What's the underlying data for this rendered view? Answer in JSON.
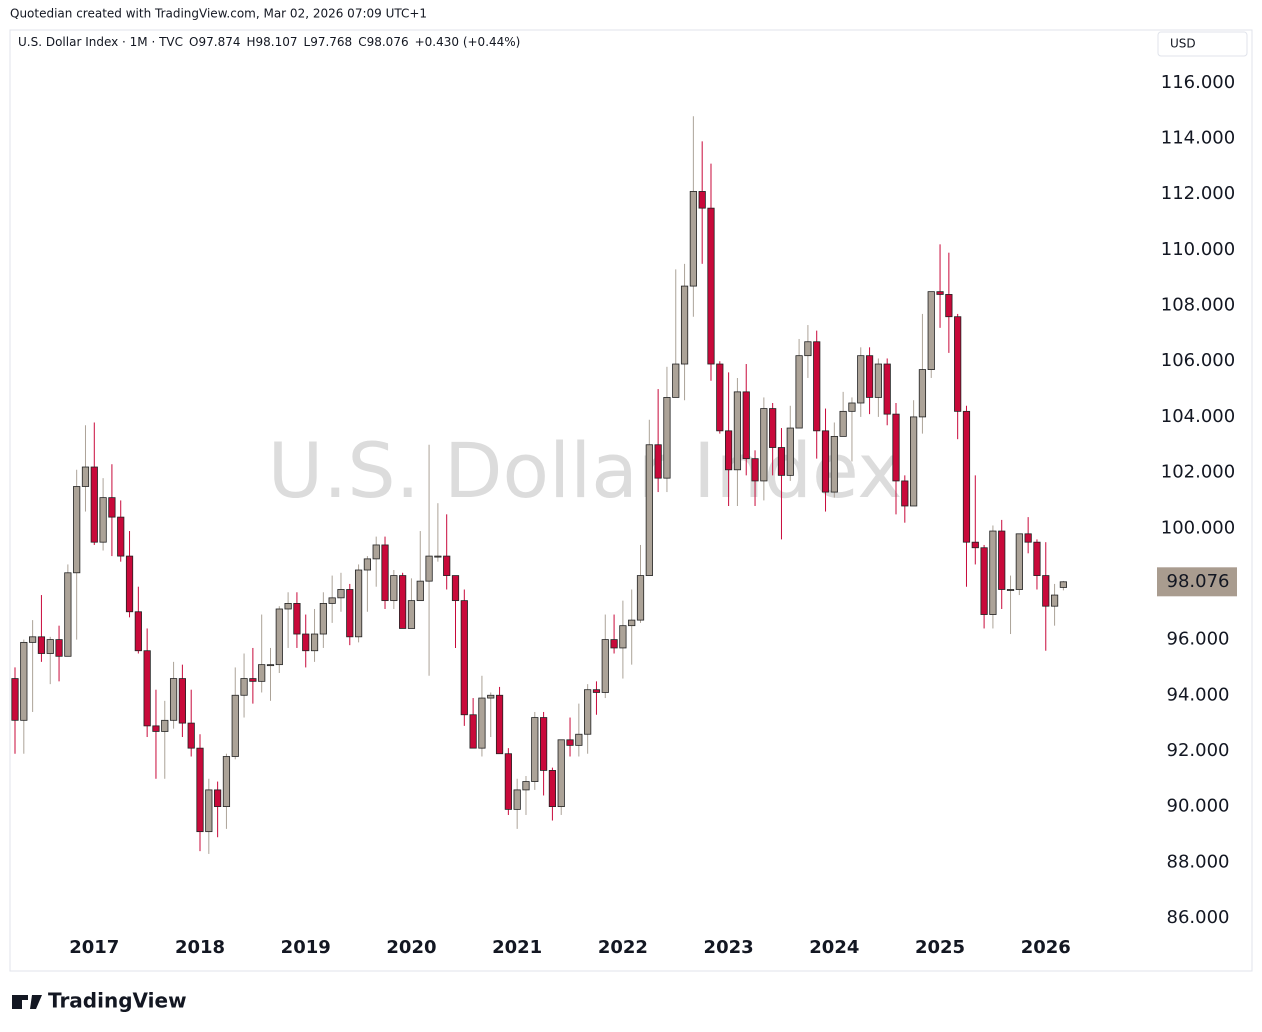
{
  "header": {
    "credit": "Quotedian created with TradingView.com, Mar 02, 2026 07:09 UTC+1"
  },
  "footer": {
    "logo": "TradingView"
  },
  "chart_data": {
    "type": "candlestick",
    "symbol": "U.S. Dollar Index · 1M · TVC",
    "ohlc_labels": [
      "O",
      "H",
      "L",
      "C"
    ],
    "change": "+0.430 (+0.44%)",
    "currency": "USD",
    "watermark": "U.S. Dollar Index",
    "up_color": "#aca398",
    "down_color": "#c8093a",
    "last_price_color": "#a99c8f",
    "categories": [
      null,
      null,
      null,
      null,
      null,
      null,
      null,
      null,
      null,
      "2017",
      null,
      null,
      null,
      null,
      null,
      null,
      null,
      null,
      null,
      null,
      null,
      "2018",
      null,
      null,
      null,
      null,
      null,
      null,
      null,
      null,
      null,
      null,
      null,
      "2019",
      null,
      null,
      null,
      null,
      null,
      null,
      null,
      null,
      null,
      null,
      null,
      "2020",
      null,
      null,
      null,
      null,
      null,
      null,
      null,
      null,
      null,
      null,
      null,
      "2021",
      null,
      null,
      null,
      null,
      null,
      null,
      null,
      null,
      null,
      null,
      null,
      "2022",
      null,
      null,
      null,
      null,
      null,
      null,
      null,
      null,
      null,
      null,
      null,
      "2023",
      null,
      null,
      null,
      null,
      null,
      null,
      null,
      null,
      null,
      null,
      null,
      "2024",
      null,
      null,
      null,
      null,
      null,
      null,
      null,
      null,
      null,
      null,
      null,
      "2025",
      null,
      null,
      null,
      null,
      null,
      null,
      null,
      null,
      null,
      null,
      null,
      "2026",
      null,
      null
    ],
    "open": [
      94.6,
      93.1,
      95.9,
      96.1,
      95.5,
      96.0,
      95.4,
      98.4,
      101.5,
      102.2,
      99.5,
      101.1,
      100.4,
      99.0,
      97.0,
      95.6,
      92.9,
      92.7,
      93.1,
      94.6,
      93.0,
      92.1,
      89.1,
      90.6,
      90.0,
      91.8,
      94.0,
      94.6,
      94.5,
      95.1,
      95.1,
      97.1,
      97.3,
      96.2,
      95.6,
      96.2,
      97.3,
      97.5,
      97.8,
      96.1,
      98.5,
      98.9,
      99.4,
      97.4,
      98.3,
      96.4,
      97.4,
      98.1,
      99.0,
      99.0,
      98.3,
      97.4,
      93.3,
      92.1,
      93.9,
      94.0,
      91.9,
      89.9,
      90.6,
      90.9,
      93.2,
      91.3,
      90.0,
      92.4,
      92.2,
      92.6,
      94.2,
      94.1,
      96.0,
      95.7,
      96.5,
      96.7,
      98.3,
      103.0,
      101.8,
      104.7,
      105.9,
      108.7,
      112.1,
      111.5,
      105.9,
      103.5,
      102.1,
      104.9,
      102.5,
      101.7,
      104.3,
      102.9,
      101.9,
      103.6,
      106.2,
      106.7,
      103.5,
      101.3,
      103.3,
      104.2,
      104.5,
      106.2,
      104.7,
      105.9,
      104.1,
      101.7,
      100.8,
      104.0,
      105.7,
      108.5,
      108.4,
      107.6,
      104.2,
      99.5,
      99.3,
      96.9,
      99.9,
      97.8,
      97.8,
      99.8,
      99.5,
      98.3,
      97.2,
      97.874
    ],
    "high": [
      95.0,
      96.0,
      96.7,
      97.6,
      96.1,
      96.5,
      98.7,
      102.1,
      103.7,
      103.8,
      101.8,
      102.3,
      101.0,
      99.9,
      97.9,
      96.4,
      94.2,
      93.8,
      95.2,
      95.1,
      94.2,
      92.6,
      91.0,
      90.9,
      91.9,
      95.0,
      95.5,
      95.7,
      96.9,
      95.7,
      97.2,
      97.7,
      97.7,
      96.9,
      97.1,
      97.7,
      98.3,
      98.4,
      98.0,
      98.7,
      99.0,
      99.7,
      99.7,
      98.5,
      98.4,
      98.2,
      99.9,
      103.0,
      100.9,
      100.5,
      98.3,
      97.8,
      93.9,
      94.7,
      94.1,
      94.3,
      92.1,
      91.0,
      91.1,
      93.4,
      93.4,
      91.4,
      92.4,
      93.2,
      93.7,
      94.4,
      94.5,
      96.9,
      96.9,
      97.4,
      97.8,
      99.4,
      103.9,
      105.0,
      105.8,
      109.3,
      109.5,
      114.8,
      113.9,
      113.1,
      106.0,
      105.6,
      105.4,
      105.9,
      102.8,
      104.7,
      104.5,
      103.6,
      104.4,
      106.8,
      107.3,
      107.1,
      104.3,
      103.8,
      104.9,
      104.7,
      106.5,
      106.5,
      106.1,
      106.1,
      104.5,
      101.9,
      104.6,
      107.7,
      108.5,
      110.2,
      109.9,
      107.7,
      104.4,
      101.9,
      99.4,
      100.1,
      100.3,
      98.3,
      99.8,
      100.4,
      99.6,
      99.5,
      98.0,
      98.107
    ],
    "low": [
      91.9,
      91.9,
      93.4,
      95.2,
      94.4,
      94.5,
      95.4,
      96.0,
      100.6,
      99.4,
      99.2,
      99.0,
      98.8,
      96.8,
      95.5,
      92.5,
      91.0,
      91.0,
      92.8,
      92.5,
      91.8,
      88.4,
      88.3,
      88.9,
      89.2,
      91.7,
      93.2,
      93.7,
      94.1,
      93.8,
      94.8,
      95.7,
      95.7,
      95.0,
      95.2,
      95.7,
      96.6,
      97.0,
      95.8,
      95.9,
      97.0,
      97.9,
      97.1,
      97.1,
      96.4,
      96.4,
      97.4,
      94.7,
      98.8,
      97.8,
      95.7,
      92.9,
      92.1,
      91.8,
      92.5,
      91.9,
      89.7,
      89.2,
      89.7,
      90.6,
      90.4,
      89.5,
      89.7,
      91.8,
      91.8,
      91.9,
      93.3,
      93.9,
      95.5,
      94.6,
      95.1,
      96.6,
      98.3,
      101.3,
      101.3,
      104.7,
      104.6,
      107.6,
      109.5,
      105.3,
      103.4,
      100.8,
      100.8,
      101.9,
      100.8,
      101.0,
      101.9,
      99.6,
      101.7,
      103.6,
      105.4,
      102.5,
      100.6,
      101.1,
      103.3,
      102.4,
      104.0,
      104.1,
      104.0,
      103.7,
      100.5,
      100.2,
      100.8,
      103.4,
      105.4,
      107.2,
      106.3,
      103.2,
      97.9,
      98.7,
      96.4,
      96.4,
      97.1,
      96.2,
      97.6,
      99.1,
      97.8,
      95.6,
      96.5,
      97.768
    ],
    "close": [
      93.1,
      95.9,
      96.1,
      95.5,
      96.0,
      95.4,
      98.4,
      101.5,
      102.2,
      99.5,
      101.1,
      100.4,
      99.0,
      97.0,
      95.6,
      92.9,
      92.7,
      93.1,
      94.6,
      93.0,
      92.1,
      89.1,
      90.6,
      90.0,
      91.8,
      94.0,
      94.6,
      94.5,
      95.1,
      95.1,
      97.1,
      97.3,
      96.2,
      95.6,
      96.2,
      97.3,
      97.5,
      97.8,
      96.1,
      98.5,
      98.9,
      99.4,
      97.4,
      98.3,
      96.4,
      97.4,
      98.1,
      99.0,
      99.0,
      98.3,
      97.4,
      93.3,
      92.1,
      93.9,
      94.0,
      91.9,
      89.9,
      90.6,
      90.9,
      93.2,
      91.3,
      90.0,
      92.4,
      92.2,
      92.6,
      94.2,
      94.1,
      96.0,
      95.7,
      96.5,
      96.7,
      98.3,
      103.0,
      101.8,
      104.7,
      105.9,
      108.7,
      112.1,
      111.5,
      105.9,
      103.5,
      102.1,
      104.9,
      102.5,
      101.7,
      104.3,
      102.9,
      101.9,
      103.6,
      106.2,
      106.7,
      103.5,
      101.3,
      103.3,
      104.2,
      104.5,
      106.2,
      104.7,
      105.9,
      104.1,
      101.7,
      100.8,
      104.0,
      105.7,
      108.5,
      108.4,
      107.6,
      104.2,
      99.5,
      99.3,
      96.9,
      99.9,
      97.8,
      97.8,
      99.8,
      99.5,
      98.3,
      97.2,
      97.6,
      98.076
    ],
    "ylim": [
      84.13,
      117.9
    ],
    "yticks": [
      {
        "value": 86,
        "label": "86.000"
      },
      {
        "value": 88,
        "label": "88.000"
      },
      {
        "value": 90,
        "label": "90.000"
      },
      {
        "value": 92,
        "label": "92.000"
      },
      {
        "value": 94,
        "label": "94.000"
      },
      {
        "value": 96,
        "label": "96.000"
      },
      {
        "value": 98,
        "label": "98.000"
      },
      {
        "value": 100,
        "label": "100.000"
      },
      {
        "value": 102,
        "label": "102.000"
      },
      {
        "value": 104,
        "label": "104.000"
      },
      {
        "value": 106,
        "label": "106.000"
      },
      {
        "value": 108,
        "label": "108.000"
      },
      {
        "value": 110,
        "label": "110.000"
      },
      {
        "value": 112,
        "label": "112.000"
      },
      {
        "value": 114,
        "label": "114.000"
      },
      {
        "value": 116,
        "label": "116.000"
      }
    ],
    "grid": false
  }
}
